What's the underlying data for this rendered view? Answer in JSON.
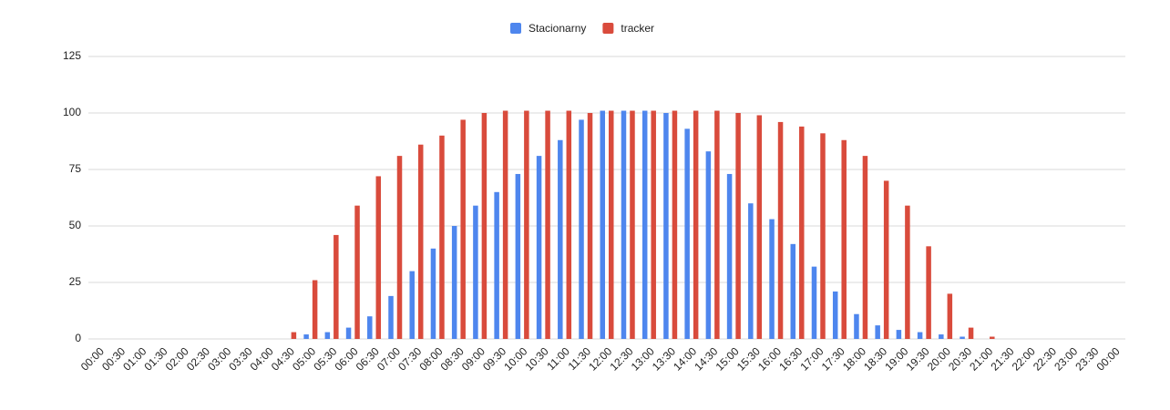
{
  "chart_data": {
    "type": "bar",
    "categories": [
      "00:00",
      "00:30",
      "01:00",
      "01:30",
      "02:00",
      "02:30",
      "03:00",
      "03:30",
      "04:00",
      "04:30",
      "05:00",
      "05:30",
      "06:00",
      "06:30",
      "07:00",
      "07:30",
      "08:00",
      "08:30",
      "09:00",
      "09:30",
      "10:00",
      "10:30",
      "11:00",
      "11:30",
      "12:00",
      "12:30",
      "13:00",
      "13:30",
      "14:00",
      "14:30",
      "15:00",
      "15:30",
      "16:00",
      "16:30",
      "17:00",
      "17:30",
      "18:00",
      "18:30",
      "19:00",
      "19:30",
      "20:00",
      "20:30",
      "21:00",
      "21:30",
      "22:00",
      "22:30",
      "23:00",
      "23:30",
      "00:00"
    ],
    "series": [
      {
        "name": "Stacionarny",
        "color": "#4e86ee",
        "values": [
          0,
          0,
          0,
          0,
          0,
          0,
          0,
          0,
          0,
          0,
          2,
          3,
          5,
          10,
          19,
          30,
          40,
          50,
          59,
          65,
          73,
          81,
          88,
          97,
          101,
          101,
          101,
          100,
          93,
          83,
          73,
          60,
          53,
          42,
          32,
          21,
          11,
          6,
          4,
          3,
          2,
          1,
          0,
          0,
          0,
          0,
          0,
          0,
          0
        ]
      },
      {
        "name": "tracker",
        "color": "#d94b3c",
        "values": [
          0,
          0,
          0,
          0,
          0,
          0,
          0,
          0,
          0,
          3,
          26,
          46,
          59,
          72,
          81,
          86,
          90,
          97,
          100,
          101,
          101,
          101,
          101,
          100,
          101,
          101,
          101,
          101,
          101,
          101,
          100,
          99,
          96,
          94,
          91,
          88,
          81,
          70,
          59,
          41,
          20,
          5,
          1,
          0,
          0,
          0,
          0,
          0,
          0
        ]
      }
    ],
    "ylim": [
      0,
      125
    ],
    "yticks": [
      0,
      25,
      50,
      75,
      100,
      125
    ],
    "grid": true,
    "legend": "top"
  }
}
